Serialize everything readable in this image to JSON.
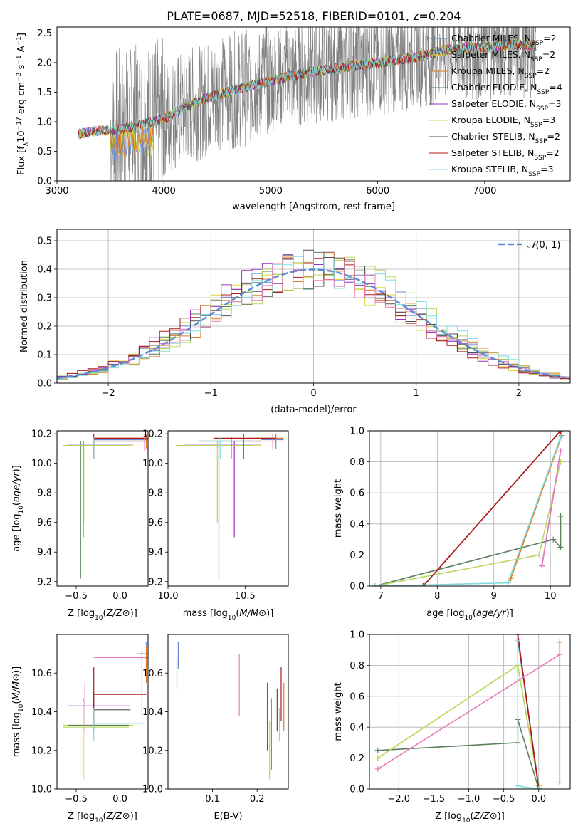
{
  "figure_title": "PLATE=0687, MJD=52518, FIBERID=0101, z=0.204",
  "colors": {
    "Chabrier MILES": "#6a8bd8",
    "Salpeter MILES": "#d9d92a",
    "Kroupa MILES": "#e07b28",
    "Chabrier ELODIE": "#5a7f5a",
    "Salpeter ELODIE": "#9b30c0",
    "Kroupa ELODIE": "#b8d860",
    "Chabrier STELIB": "#505050",
    "Salpeter STELIB": "#b01818",
    "Kroupa STELIB": "#80dce0",
    "pink": "#e87cb8",
    "data": "#808080",
    "normal": "#5b8bd6"
  },
  "chart_data": [
    {
      "id": "spectrum",
      "type": "line",
      "xlabel": "wavelength [Angstrom, rest frame]",
      "ylabel": "Flux [f_λ10^-17 erg cm^-2 s^-1 A^-1]",
      "xlim": [
        3000,
        7800
      ],
      "ylim": [
        0,
        2.6
      ],
      "xticks": [
        3000,
        4000,
        5000,
        6000,
        7000
      ],
      "yticks": [
        0.0,
        0.5,
        1.0,
        1.5,
        2.0,
        2.5
      ],
      "legend_position": "top-right",
      "model_points": {
        "x": [
          3200,
          3400,
          3600,
          3800,
          4000,
          4200,
          4400,
          4600,
          4800,
          5000,
          5200,
          5400,
          5600,
          5800,
          6000,
          6200,
          6400,
          6600,
          6800,
          7000,
          7200,
          7400,
          7480
        ],
        "y": [
          0.8,
          0.85,
          0.88,
          0.95,
          1.05,
          1.25,
          1.4,
          1.5,
          1.6,
          1.7,
          1.78,
          1.85,
          1.9,
          1.95,
          2.0,
          2.05,
          2.1,
          2.2,
          2.25,
          2.25,
          2.3,
          2.3,
          2.28
        ]
      },
      "data_range": [
        3500,
        7480
      ],
      "series": [
        {
          "name": "Chabrier MILES, N_SSP=2",
          "label": "Chabrier MILES, N",
          "nssp": "=2"
        },
        {
          "name": "Salpeter MILES, N_SSP=2",
          "label": "Salpeter MILES, N",
          "nssp": "=2"
        },
        {
          "name": "Kroupa MILES, N_SSP=2",
          "label": "Kroupa MILES, N",
          "nssp": "=2"
        },
        {
          "name": "Chabrier ELODIE, N_SSP=4",
          "label": "Chabrier ELODIE, N",
          "nssp": "=4"
        },
        {
          "name": "Salpeter ELODIE, N_SSP=3",
          "label": "Salpeter ELODIE, N",
          "nssp": "=3"
        },
        {
          "name": "Kroupa ELODIE, N_SSP=3",
          "label": "Kroupa ELODIE, N",
          "nssp": "=3"
        },
        {
          "name": "Chabrier STELIB, N_SSP=2",
          "label": "Chabrier STELIB, N",
          "nssp": "=2"
        },
        {
          "name": "Salpeter STELIB, N_SSP=2",
          "label": "Salpeter STELIB, N",
          "nssp": "=2"
        },
        {
          "name": "Kroupa STELIB, N_SSP=3",
          "label": "Kroupa STELIB, N",
          "nssp": "=3"
        }
      ]
    },
    {
      "id": "residuals",
      "type": "step",
      "xlabel": "(data-model)/error",
      "ylabel": "Normed distribution",
      "xlim": [
        -2.5,
        2.5
      ],
      "ylim": [
        0,
        0.54
      ],
      "xticks": [
        -2,
        -1,
        0,
        1,
        2
      ],
      "yticks": [
        0.0,
        0.1,
        0.2,
        0.3,
        0.4,
        0.5
      ],
      "grid": true,
      "normal_label": "N(0,1)",
      "bin_width": 0.1
    },
    {
      "id": "age_vs_Z",
      "type": "errorbar",
      "xlabel": "Z [log10(Z/Z⊙)]",
      "ylabel": "age [log10(age/yr)]",
      "xlim": [
        -0.72,
        0.32
      ],
      "ylim": [
        9.17,
        10.22
      ],
      "xticks": [
        -0.5,
        0.0
      ],
      "yticks": [
        9.2,
        9.4,
        9.6,
        9.8,
        10.0,
        10.2
      ],
      "points": [
        {
          "c": "Chabrier MILES",
          "x": 0.28,
          "y": 10.16,
          "xl": -0.3,
          "xh": 0.32,
          "yl": 10.1,
          "yh": 10.2
        },
        {
          "c": "Salpeter MILES",
          "x": -0.4,
          "y": 10.12,
          "xl": -0.65,
          "xh": 0.15,
          "yl": 9.6,
          "yh": 10.15
        },
        {
          "c": "Kroupa MILES",
          "x": 0.3,
          "y": 10.17,
          "xl": -0.3,
          "xh": 0.32,
          "yl": 10.1,
          "yh": 10.2
        },
        {
          "c": "Chabrier ELODIE",
          "x": -0.45,
          "y": 10.12,
          "xl": -0.65,
          "xh": 0.1,
          "yl": 9.22,
          "yh": 10.15
        },
        {
          "c": "Salpeter ELODIE",
          "x": -0.42,
          "y": 10.13,
          "xl": -0.6,
          "xh": 0.15,
          "yl": 9.5,
          "yh": 10.15
        },
        {
          "c": "Kroupa ELODIE",
          "x": -0.4,
          "y": 10.12,
          "xl": -0.65,
          "xh": 0.1,
          "yl": 9.6,
          "yh": 10.15
        },
        {
          "c": "Chabrier STELIB",
          "x": -0.3,
          "y": 10.15,
          "xl": -0.3,
          "xh": 0.3,
          "yl": 10.03,
          "yh": 10.18
        },
        {
          "c": "Salpeter STELIB",
          "x": -0.3,
          "y": 10.17,
          "xl": -0.3,
          "xh": 0.3,
          "yl": 10.03,
          "yh": 10.2
        },
        {
          "c": "Kroupa STELIB",
          "x": -0.3,
          "y": 10.15,
          "xl": -0.3,
          "xh": 0.3,
          "yl": 10.03,
          "yh": 10.18
        },
        {
          "c": "pink",
          "x": 0.28,
          "y": 10.15,
          "xl": -0.25,
          "xh": 0.32,
          "yl": 10.08,
          "yh": 10.2
        }
      ]
    },
    {
      "id": "age_vs_mass",
      "type": "errorbar",
      "xlabel": "mass [log10(M/M⊙)]",
      "ylabel": "",
      "xlim": [
        10.0,
        10.78
      ],
      "ylim": [
        9.17,
        10.22
      ],
      "xticks": [
        10.0,
        10.5
      ],
      "yticks": [
        9.2,
        9.4,
        9.6,
        9.8,
        10.0,
        10.2
      ],
      "points": [
        {
          "c": "Chabrier MILES",
          "x": 10.7,
          "y": 10.16,
          "xl": 10.6,
          "xh": 10.75,
          "yl": 10.1,
          "yh": 10.2
        },
        {
          "c": "Salpeter MILES",
          "x": 10.33,
          "y": 10.12,
          "xl": 10.05,
          "xh": 10.6,
          "yl": 9.6,
          "yh": 10.15
        },
        {
          "c": "Kroupa MILES",
          "x": 10.68,
          "y": 10.17,
          "xl": 10.55,
          "xh": 10.75,
          "yl": 10.1,
          "yh": 10.2
        },
        {
          "c": "Chabrier ELODIE",
          "x": 10.33,
          "y": 10.12,
          "xl": 10.05,
          "xh": 10.55,
          "yl": 9.22,
          "yh": 10.15
        },
        {
          "c": "Salpeter ELODIE",
          "x": 10.43,
          "y": 10.13,
          "xl": 10.1,
          "xh": 10.6,
          "yl": 9.5,
          "yh": 10.15
        },
        {
          "c": "Kroupa ELODIE",
          "x": 10.32,
          "y": 10.12,
          "xl": 10.05,
          "xh": 10.55,
          "yl": 9.6,
          "yh": 10.15
        },
        {
          "c": "Chabrier STELIB",
          "x": 10.41,
          "y": 10.15,
          "xl": 10.2,
          "xh": 10.6,
          "yl": 10.03,
          "yh": 10.18
        },
        {
          "c": "Salpeter STELIB",
          "x": 10.49,
          "y": 10.17,
          "xl": 10.3,
          "xh": 10.7,
          "yl": 10.03,
          "yh": 10.2
        },
        {
          "c": "Kroupa STELIB",
          "x": 10.34,
          "y": 10.15,
          "xl": 10.2,
          "xh": 10.5,
          "yl": 10.03,
          "yh": 10.18
        },
        {
          "c": "pink",
          "x": 10.68,
          "y": 10.15,
          "xl": 10.5,
          "xh": 10.75,
          "yl": 10.08,
          "yh": 10.2
        }
      ]
    },
    {
      "id": "weight_vs_age",
      "type": "line",
      "xlabel": "age [log10(age/yr)]",
      "ylabel": "mass weight",
      "xlim": [
        6.8,
        10.35
      ],
      "ylim": [
        0,
        1.0
      ],
      "xticks": [
        7,
        8,
        9,
        10
      ],
      "yticks": [
        0.0,
        0.2,
        0.4,
        0.6,
        0.8,
        1.0
      ],
      "grid": true,
      "series": [
        {
          "c": "Chabrier MILES",
          "x": [
            9.25,
            10.2
          ],
          "y": [
            0.02,
            0.97
          ]
        },
        {
          "c": "Salpeter MILES",
          "x": [
            9.3,
            10.2
          ],
          "y": [
            0.05,
            0.97
          ]
        },
        {
          "c": "Kroupa MILES",
          "x": [
            9.3,
            10.2
          ],
          "y": [
            0.05,
            0.97
          ]
        },
        {
          "c": "Chabrier ELODIE",
          "x": [
            6.9,
            10.05,
            10.18,
            10.18
          ],
          "y": [
            0.0,
            0.3,
            0.25,
            0.45
          ]
        },
        {
          "c": "Salpeter ELODIE",
          "x": [
            9.85,
            10.18
          ],
          "y": [
            0.13,
            0.87
          ]
        },
        {
          "c": "Kroupa ELODIE",
          "x": [
            6.9,
            9.8,
            10.18
          ],
          "y": [
            0.0,
            0.2,
            0.8
          ]
        },
        {
          "c": "Chabrier STELIB",
          "x": [
            7.75,
            10.18
          ],
          "y": [
            0.0,
            1.0
          ]
        },
        {
          "c": "Salpeter STELIB",
          "x": [
            7.75,
            10.18
          ],
          "y": [
            0.0,
            1.0
          ]
        },
        {
          "c": "Kroupa STELIB",
          "x": [
            6.9,
            9.25,
            10.18
          ],
          "y": [
            0.0,
            0.02,
            0.96
          ]
        },
        {
          "c": "pink",
          "x": [
            9.85,
            10.18
          ],
          "y": [
            0.13,
            0.87
          ]
        }
      ]
    },
    {
      "id": "mass_vs_Z",
      "type": "errorbar",
      "xlabel": "Z [log10(Z/Z⊙)]",
      "ylabel": "mass [log10(M/M⊙)]",
      "xlim": [
        -0.72,
        0.32
      ],
      "ylim": [
        10.0,
        10.8
      ],
      "xticks": [
        -0.5,
        0.0
      ],
      "yticks": [
        10.0,
        10.2,
        10.4,
        10.6
      ],
      "points": [
        {
          "c": "Chabrier MILES",
          "x": 0.3,
          "y": 10.7,
          "xl": 0.2,
          "xh": 0.32,
          "yl": 10.6,
          "yh": 10.76
        },
        {
          "c": "Salpeter MILES",
          "x": -0.4,
          "y": 10.33,
          "xl": -0.65,
          "xh": 0.15,
          "yl": 10.05,
          "yh": 10.45
        },
        {
          "c": "Kroupa MILES",
          "x": 0.3,
          "y": 10.68,
          "xl": 0.2,
          "xh": 0.32,
          "yl": 10.55,
          "yh": 10.74
        },
        {
          "c": "Chabrier ELODIE",
          "x": -0.42,
          "y": 10.33,
          "xl": -0.6,
          "xh": 0.1,
          "yl": 10.05,
          "yh": 10.47
        },
        {
          "c": "Salpeter ELODIE",
          "x": -0.4,
          "y": 10.43,
          "xl": -0.6,
          "xh": 0.12,
          "yl": 10.3,
          "yh": 10.55
        },
        {
          "c": "Kroupa ELODIE",
          "x": -0.42,
          "y": 10.32,
          "xl": -0.65,
          "xh": 0.1,
          "yl": 10.05,
          "yh": 10.45
        },
        {
          "c": "Chabrier STELIB",
          "x": -0.3,
          "y": 10.41,
          "xl": -0.3,
          "xh": 0.12,
          "yl": 10.3,
          "yh": 10.5
        },
        {
          "c": "Salpeter STELIB",
          "x": -0.3,
          "y": 10.49,
          "xl": -0.3,
          "xh": 0.3,
          "yl": 10.35,
          "yh": 10.63
        },
        {
          "c": "Kroupa STELIB",
          "x": -0.3,
          "y": 10.34,
          "xl": -0.3,
          "xh": 0.28,
          "yl": 10.25,
          "yh": 10.42
        },
        {
          "c": "pink",
          "x": 0.25,
          "y": 10.68,
          "xl": -0.3,
          "xh": 0.3,
          "yl": 10.38,
          "yh": 10.72
        }
      ]
    },
    {
      "id": "mass_vs_EBV",
      "type": "errorbar",
      "xlabel": "E(B-V)",
      "ylabel": "",
      "xlim": [
        0.0,
        0.27
      ],
      "ylim": [
        10.0,
        10.8
      ],
      "xticks": [
        0.1,
        0.2
      ],
      "yticks": [
        10.0,
        10.2,
        10.4,
        10.6
      ],
      "points": [
        {
          "c": "Chabrier MILES",
          "x": 0.023,
          "y": 10.7,
          "xl": 0.023,
          "xh": 0.023,
          "yl": 10.62,
          "yh": 10.76
        },
        {
          "c": "Kroupa MILES",
          "x": 0.02,
          "y": 10.6,
          "xl": 0.02,
          "xh": 0.02,
          "yl": 10.52,
          "yh": 10.68
        },
        {
          "c": "pink",
          "x": 0.16,
          "y": 10.55,
          "xl": 0.16,
          "xh": 0.16,
          "yl": 10.38,
          "yh": 10.7
        },
        {
          "c": "Salpeter ELODIE",
          "x": 0.223,
          "y": 10.42,
          "xl": 0.223,
          "xh": 0.223,
          "yl": 10.2,
          "yh": 10.55
        },
        {
          "c": "Kroupa ELODIE",
          "x": 0.228,
          "y": 10.2,
          "xl": 0.228,
          "xh": 0.228,
          "yl": 10.05,
          "yh": 10.35
        },
        {
          "c": "Chabrier ELODIE",
          "x": 0.232,
          "y": 10.33,
          "xl": 0.232,
          "xh": 0.232,
          "yl": 10.1,
          "yh": 10.47
        },
        {
          "c": "Chabrier STELIB",
          "x": 0.245,
          "y": 10.41,
          "xl": 0.245,
          "xh": 0.245,
          "yl": 10.3,
          "yh": 10.52
        },
        {
          "c": "Kroupa STELIB",
          "x": 0.25,
          "y": 10.34,
          "xl": 0.25,
          "xh": 0.25,
          "yl": 10.25,
          "yh": 10.42
        },
        {
          "c": "Salpeter STELIB",
          "x": 0.254,
          "y": 10.49,
          "xl": 0.254,
          "xh": 0.254,
          "yl": 10.35,
          "yh": 10.63
        },
        {
          "c": "Kroupa MILES",
          "x": 0.26,
          "y": 10.45,
          "xl": 0.26,
          "xh": 0.26,
          "yl": 10.3,
          "yh": 10.55
        }
      ]
    },
    {
      "id": "weight_vs_Z",
      "type": "line",
      "xlabel": "Z [log10(Z/Z⊙)]",
      "ylabel": "mass weight",
      "xlim": [
        -2.42,
        0.45
      ],
      "ylim": [
        0,
        1.0
      ],
      "xticks": [
        -2.0,
        -1.5,
        -1.0,
        -0.5,
        0.0
      ],
      "yticks": [
        0.0,
        0.2,
        0.4,
        0.6,
        0.8,
        1.0
      ],
      "grid": true,
      "series": [
        {
          "c": "Chabrier MILES",
          "x": [
            -0.3,
            0.0
          ],
          "y": [
            0.97,
            0.02
          ]
        },
        {
          "c": "Salpeter MILES",
          "x": [
            -2.3,
            -0.3,
            0.0
          ],
          "y": [
            0.2,
            0.8,
            0.02
          ]
        },
        {
          "c": "Kroupa MILES",
          "x": [
            0.3,
            0.3
          ],
          "y": [
            0.04,
            0.95
          ]
        },
        {
          "c": "Chabrier ELODIE",
          "x": [
            -2.3,
            -0.3,
            -0.3,
            0.0
          ],
          "y": [
            0.25,
            0.3,
            0.45,
            0.0
          ]
        },
        {
          "c": "Kroupa ELODIE",
          "x": [
            -2.3,
            -0.3,
            0.0
          ],
          "y": [
            0.2,
            0.8,
            0.02
          ]
        },
        {
          "c": "Chabrier STELIB",
          "x": [
            -0.3,
            0.0
          ],
          "y": [
            1.0,
            0.0
          ]
        },
        {
          "c": "Salpeter STELIB",
          "x": [
            -0.3,
            0.0
          ],
          "y": [
            1.0,
            0.0
          ]
        },
        {
          "c": "Kroupa STELIB",
          "x": [
            -0.3,
            -0.3,
            0.0
          ],
          "y": [
            0.96,
            0.02,
            0.0
          ]
        },
        {
          "c": "pink",
          "x": [
            -2.3,
            0.3
          ],
          "y": [
            0.13,
            0.87
          ]
        }
      ]
    }
  ]
}
